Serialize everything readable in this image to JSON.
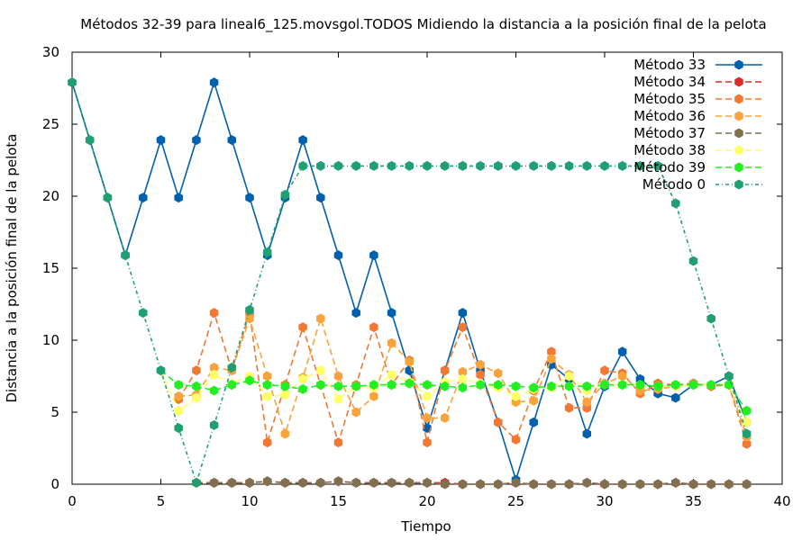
{
  "chart_data": {
    "type": "line",
    "title": "Métodos 32-39 para lineal6_125.movsgol.TODOS Midiendo la distancia a la posición final de la pelota",
    "xlabel": "Tiempo",
    "ylabel": "Distancia a la posición final de la pelota",
    "xlim": [
      0,
      40
    ],
    "ylim": [
      0,
      30
    ],
    "xticks": [
      0,
      5,
      10,
      15,
      20,
      25,
      30,
      35,
      40
    ],
    "yticks": [
      0,
      5,
      10,
      15,
      20,
      25,
      30
    ],
    "grid": false,
    "legend_position": "top-right",
    "series": [
      {
        "name": "Método 33",
        "color": "#0060ad",
        "dash": "solid",
        "x": [
          0,
          1,
          2,
          3,
          4,
          5,
          6,
          7,
          8,
          9,
          10,
          11,
          12,
          13,
          14,
          15,
          16,
          17,
          18,
          19,
          20,
          21,
          22,
          23,
          24,
          25,
          26,
          27,
          28,
          29,
          30,
          31,
          32,
          33,
          34,
          35,
          36,
          37,
          38
        ],
        "y": [
          27.9,
          23.9,
          19.9,
          15.9,
          19.9,
          23.9,
          19.9,
          23.9,
          27.9,
          23.9,
          19.9,
          15.9,
          19.9,
          23.9,
          19.9,
          15.9,
          11.9,
          15.9,
          11.9,
          7.9,
          3.9,
          7.9,
          11.9,
          7.9,
          4.3,
          0.3,
          4.3,
          8.3,
          7.3,
          3.5,
          6.8,
          9.2,
          7.3,
          6.3,
          6.0,
          6.9,
          6.9,
          7.5,
          4.3
        ]
      },
      {
        "name": "Método 34",
        "color": "#dd2a2a",
        "dash": "dashed",
        "x": [
          7,
          8,
          9,
          10,
          11,
          12,
          13,
          14,
          15,
          16,
          17,
          18,
          19,
          20,
          21,
          22,
          23,
          24,
          25,
          26,
          27,
          28,
          29,
          30,
          31,
          32,
          33,
          34,
          35,
          36,
          37,
          38
        ],
        "y": [
          0.1,
          0.1,
          0.1,
          0.1,
          0.2,
          0.1,
          0.1,
          0.1,
          0.2,
          0.1,
          0.1,
          0.1,
          0.1,
          0.1,
          0.1,
          0.0,
          0.0,
          0.0,
          0.1,
          0.0,
          0.0,
          0.0,
          0.1,
          0.0,
          0.0,
          0.0,
          0.0,
          0.1,
          0.0,
          0.0,
          0.0,
          0.0
        ]
      },
      {
        "name": "Método 35",
        "color": "#f07833",
        "dash": "dashed",
        "x": [
          6,
          7,
          8,
          9,
          10,
          11,
          12,
          13,
          14,
          15,
          16,
          17,
          18,
          19,
          20,
          21,
          22,
          23,
          24,
          25,
          26,
          27,
          28,
          29,
          30,
          31,
          32,
          33,
          34,
          35,
          36,
          37,
          38
        ],
        "y": [
          5.9,
          7.9,
          11.9,
          7.9,
          11.9,
          2.9,
          6.9,
          10.9,
          6.9,
          2.9,
          6.9,
          10.9,
          6.9,
          8.6,
          2.9,
          7.9,
          10.9,
          7.6,
          4.3,
          3.1,
          6.5,
          9.2,
          5.3,
          5.3,
          7.9,
          7.7,
          6.3,
          7.0,
          6.9,
          7.0,
          6.8,
          6.9,
          2.8
        ]
      },
      {
        "name": "Método 36",
        "color": "#f9a33d",
        "dash": "dashed",
        "x": [
          6,
          7,
          8,
          9,
          10,
          11,
          12,
          13,
          14,
          15,
          16,
          17,
          18,
          19,
          20,
          21,
          22,
          23,
          24,
          25,
          26,
          27,
          28,
          29,
          30,
          31,
          32,
          33,
          34,
          35,
          36,
          37,
          38
        ],
        "y": [
          6.1,
          6.2,
          8.1,
          7.9,
          11.5,
          7.5,
          3.5,
          7.4,
          11.5,
          7.5,
          5.0,
          6.1,
          9.8,
          8.5,
          4.6,
          4.6,
          7.8,
          8.3,
          7.7,
          5.7,
          5.8,
          8.7,
          7.6,
          5.7,
          7.0,
          7.5,
          6.5,
          6.6,
          6.8,
          6.9,
          6.9,
          6.9,
          3.3
        ]
      },
      {
        "name": "Método 37",
        "color": "#80704f",
        "dash": "dashed",
        "x": [
          7,
          8,
          9,
          10,
          11,
          12,
          13,
          14,
          15,
          16,
          17,
          18,
          19,
          20,
          21,
          22,
          23,
          24,
          25,
          26,
          27,
          28,
          29,
          30,
          31,
          32,
          33,
          34,
          35,
          36,
          37,
          38
        ],
        "y": [
          0.1,
          0.1,
          0.1,
          0.1,
          0.2,
          0.1,
          0.1,
          0.1,
          0.2,
          0.1,
          0.1,
          0.1,
          0.1,
          0.1,
          0.0,
          0.0,
          0.0,
          0.0,
          0.1,
          0.0,
          0.0,
          0.0,
          0.1,
          0.0,
          0.0,
          0.0,
          0.0,
          0.1,
          0.0,
          0.0,
          0.0,
          0.0
        ]
      },
      {
        "name": "Método 38",
        "color": "#ffff66",
        "dash": "dashed",
        "x": [
          5,
          6,
          7,
          8,
          9,
          10,
          11,
          12,
          13,
          14,
          15,
          16,
          17,
          18,
          19,
          20,
          21,
          22,
          23,
          24,
          25,
          26,
          27,
          28,
          29,
          30,
          31,
          32,
          33,
          34,
          35,
          36,
          37,
          38
        ],
        "y": [
          7.9,
          5.1,
          6.0,
          7.6,
          7.0,
          7.5,
          6.1,
          6.2,
          7.3,
          7.9,
          5.9,
          6.8,
          6.7,
          7.6,
          7.1,
          6.1,
          7.1,
          7.3,
          7.0,
          6.7,
          6.1,
          6.6,
          6.7,
          7.5,
          6.5,
          6.9,
          6.9,
          6.9,
          6.8,
          6.8,
          6.9,
          6.9,
          6.9,
          4.3
        ]
      },
      {
        "name": "Método 39",
        "color": "#22ee22",
        "dash": "dashed",
        "x": [
          5,
          6,
          7,
          8,
          9,
          10,
          11,
          12,
          13,
          14,
          15,
          16,
          17,
          18,
          19,
          20,
          21,
          22,
          23,
          24,
          25,
          26,
          27,
          28,
          29,
          30,
          31,
          32,
          33,
          34,
          35,
          36,
          37,
          38
        ],
        "y": [
          7.9,
          6.9,
          6.8,
          6.5,
          6.9,
          7.2,
          6.9,
          6.8,
          6.6,
          6.9,
          6.8,
          6.8,
          6.9,
          6.9,
          7.0,
          6.9,
          6.8,
          6.7,
          6.9,
          6.9,
          6.8,
          6.7,
          6.8,
          6.8,
          6.8,
          6.9,
          6.9,
          6.9,
          6.8,
          6.9,
          6.9,
          6.9,
          6.9,
          5.1
        ]
      },
      {
        "name": "Método 0",
        "color": "#1fa070",
        "dash": "dashdot",
        "x": [
          0,
          1,
          2,
          3,
          4,
          5,
          6,
          7,
          8,
          9,
          10,
          11,
          12,
          13,
          14,
          15,
          16,
          17,
          18,
          19,
          20,
          21,
          22,
          23,
          24,
          25,
          26,
          27,
          28,
          29,
          30,
          31,
          32,
          33,
          34,
          35,
          36,
          37,
          38
        ],
        "y": [
          27.9,
          23.9,
          19.9,
          15.9,
          11.9,
          7.9,
          3.9,
          0.1,
          4.1,
          8.1,
          12.1,
          16.1,
          20.1,
          22.1,
          22.1,
          22.1,
          22.1,
          22.1,
          22.1,
          22.1,
          22.1,
          22.1,
          22.1,
          22.1,
          22.1,
          22.1,
          22.1,
          22.1,
          22.1,
          22.1,
          22.1,
          22.1,
          22.1,
          22.1,
          19.5,
          15.5,
          11.5,
          7.5,
          3.5
        ]
      }
    ]
  }
}
